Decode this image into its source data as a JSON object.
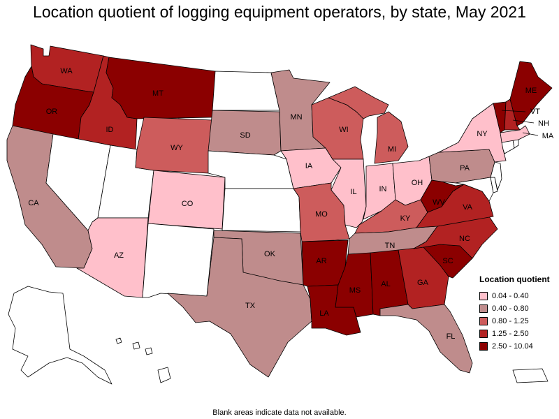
{
  "title": "Location quotient of logging equipment operators, by state, May 2021",
  "footnote": "Blank areas indicate data not available.",
  "legend": {
    "title": "Location quotient",
    "bins": [
      {
        "label": "0.04 - 0.40",
        "color": "#ffc0cb"
      },
      {
        "label": "0.40 - 0.80",
        "color": "#bf8c8c"
      },
      {
        "label": "0.80 - 1.25",
        "color": "#cd5c5c"
      },
      {
        "label": "1.25 - 2.50",
        "color": "#b22222"
      },
      {
        "label": "2.50 - 10.04",
        "color": "#8b0000"
      }
    ]
  },
  "no_data_color": "#ffffff",
  "states": {
    "WA": {
      "label": "WA",
      "bin": 3
    },
    "OR": {
      "label": "OR",
      "bin": 4
    },
    "CA": {
      "label": "CA",
      "bin": 1
    },
    "ID": {
      "label": "ID",
      "bin": 3
    },
    "NV": {
      "label": "",
      "bin": null
    },
    "UT": {
      "label": "",
      "bin": null
    },
    "AZ": {
      "label": "AZ",
      "bin": 0
    },
    "MT": {
      "label": "MT",
      "bin": 4
    },
    "WY": {
      "label": "WY",
      "bin": 2
    },
    "CO": {
      "label": "CO",
      "bin": 0
    },
    "NM": {
      "label": "",
      "bin": null
    },
    "ND": {
      "label": "",
      "bin": null
    },
    "SD": {
      "label": "SD",
      "bin": 1
    },
    "NE": {
      "label": "",
      "bin": null
    },
    "KS": {
      "label": "",
      "bin": null
    },
    "OK": {
      "label": "OK",
      "bin": 1
    },
    "TX": {
      "label": "TX",
      "bin": 1
    },
    "MN": {
      "label": "MN",
      "bin": 1
    },
    "IA": {
      "label": "IA",
      "bin": 0
    },
    "MO": {
      "label": "MO",
      "bin": 2
    },
    "AR": {
      "label": "AR",
      "bin": 4
    },
    "LA": {
      "label": "LA",
      "bin": 4
    },
    "WI": {
      "label": "WI",
      "bin": 2
    },
    "IL": {
      "label": "IL",
      "bin": 0
    },
    "MI": {
      "label": "MI",
      "bin": 2
    },
    "IN": {
      "label": "IN",
      "bin": 0
    },
    "OH": {
      "label": "OH",
      "bin": 0
    },
    "KY": {
      "label": "KY",
      "bin": 2
    },
    "TN": {
      "label": "TN",
      "bin": 1
    },
    "MS": {
      "label": "MS",
      "bin": 4
    },
    "AL": {
      "label": "AL",
      "bin": 4
    },
    "GA": {
      "label": "GA",
      "bin": 3
    },
    "FL": {
      "label": "FL",
      "bin": 1
    },
    "SC": {
      "label": "SC",
      "bin": 4
    },
    "NC": {
      "label": "NC",
      "bin": 3
    },
    "VA": {
      "label": "VA",
      "bin": 3
    },
    "WV": {
      "label": "WV",
      "bin": 4
    },
    "PA": {
      "label": "PA",
      "bin": 1
    },
    "NY": {
      "label": "NY",
      "bin": 0
    },
    "VT": {
      "label": "VT",
      "bin": 4
    },
    "NH": {
      "label": "NH",
      "bin": 3
    },
    "ME": {
      "label": "ME",
      "bin": 4
    },
    "MA": {
      "label": "MA",
      "bin": 0
    },
    "NJ": {
      "label": "",
      "bin": null
    },
    "DE": {
      "label": "",
      "bin": null
    },
    "MD": {
      "label": "",
      "bin": null
    },
    "CT": {
      "label": "",
      "bin": null
    },
    "RI": {
      "label": "",
      "bin": null
    },
    "AK": {
      "label": "",
      "bin": null
    },
    "HI": {
      "label": "",
      "bin": null
    },
    "PR": {
      "label": "",
      "bin": null
    }
  }
}
